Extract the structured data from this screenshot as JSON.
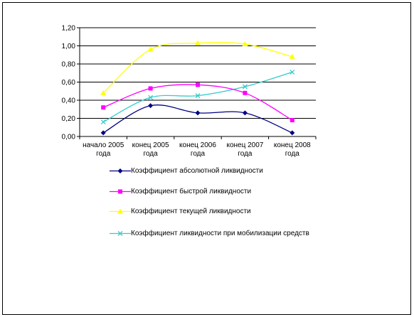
{
  "chart_data": {
    "type": "line",
    "categories": [
      [
        "начало 2005",
        "года"
      ],
      [
        "конец 2005",
        "года"
      ],
      [
        "конец 2006",
        "года"
      ],
      [
        "конец 2007",
        "года"
      ],
      [
        "конец 2008",
        "года"
      ]
    ],
    "y_ticks": [
      "0,00",
      "0,20",
      "0,40",
      "0,60",
      "0,80",
      "1,00",
      "1,20"
    ],
    "ylim": [
      0,
      1.2
    ],
    "grid": true,
    "legend_position": "bottom",
    "series": [
      {
        "name": "Коэффициент абсолютной ликвидности",
        "color": "#000080",
        "marker": "diamond",
        "values": [
          0.04,
          0.34,
          0.26,
          0.26,
          0.04
        ]
      },
      {
        "name": "Коэффициент быстрой ликвидности",
        "color": "#ff00ff",
        "marker": "square",
        "values": [
          0.32,
          0.53,
          0.57,
          0.48,
          0.18
        ]
      },
      {
        "name": "Коэффициент текущей ликвидности",
        "color": "#ffff00",
        "marker": "triangle",
        "values": [
          0.48,
          0.96,
          1.03,
          1.02,
          0.88
        ]
      },
      {
        "name": "Коэффициент ликвидности при мобилизации средств",
        "color": "#33cccc",
        "marker": "x",
        "values": [
          0.16,
          0.43,
          0.45,
          0.55,
          0.71
        ]
      }
    ]
  }
}
